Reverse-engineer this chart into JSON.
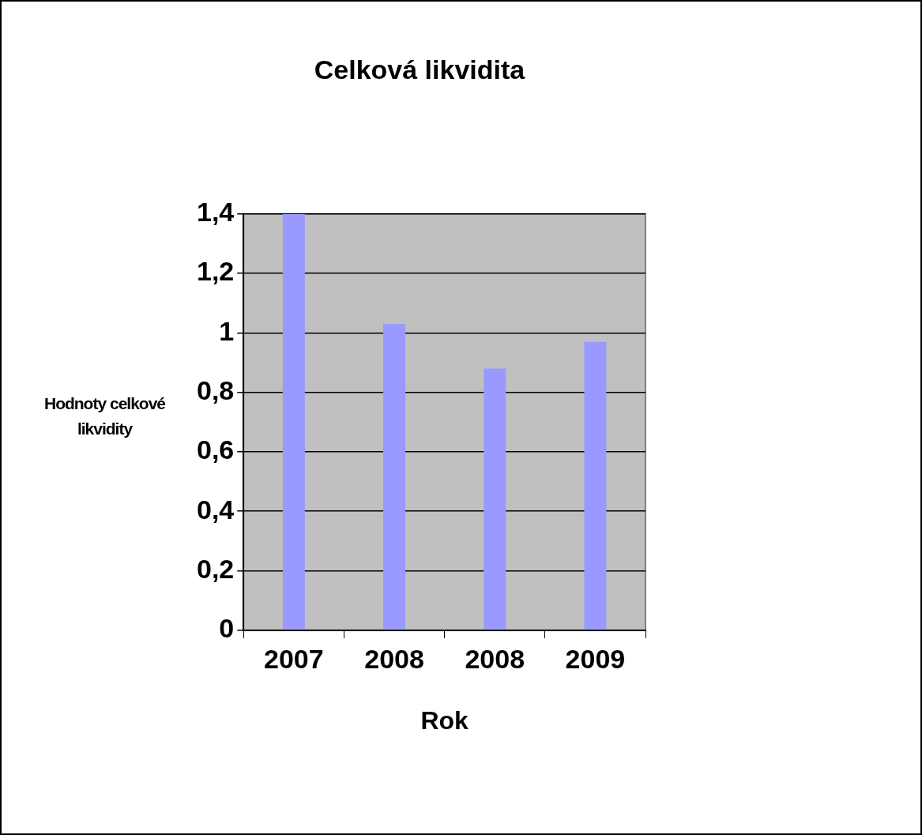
{
  "chart_data": {
    "type": "bar",
    "title": "Celková likvidita",
    "xlabel": "Rok",
    "ylabel": "Hodnoty celkové likvidity",
    "categories": [
      "2007",
      "2008",
      "2008",
      "2009"
    ],
    "values": [
      1.4,
      1.03,
      0.88,
      0.97
    ],
    "color": "#9999ff",
    "ylim": [
      0,
      1.4
    ],
    "yticks": [
      {
        "value": 0,
        "label": "0"
      },
      {
        "value": 0.2,
        "label": "0,2"
      },
      {
        "value": 0.4,
        "label": "0,4"
      },
      {
        "value": 0.6,
        "label": "0,6"
      },
      {
        "value": 0.8,
        "label": "0,8"
      },
      {
        "value": 1,
        "label": "1"
      },
      {
        "value": 1.2,
        "label": "1,2"
      },
      {
        "value": 1.4,
        "label": "1,4"
      }
    ],
    "grid": "y",
    "legend": false
  }
}
